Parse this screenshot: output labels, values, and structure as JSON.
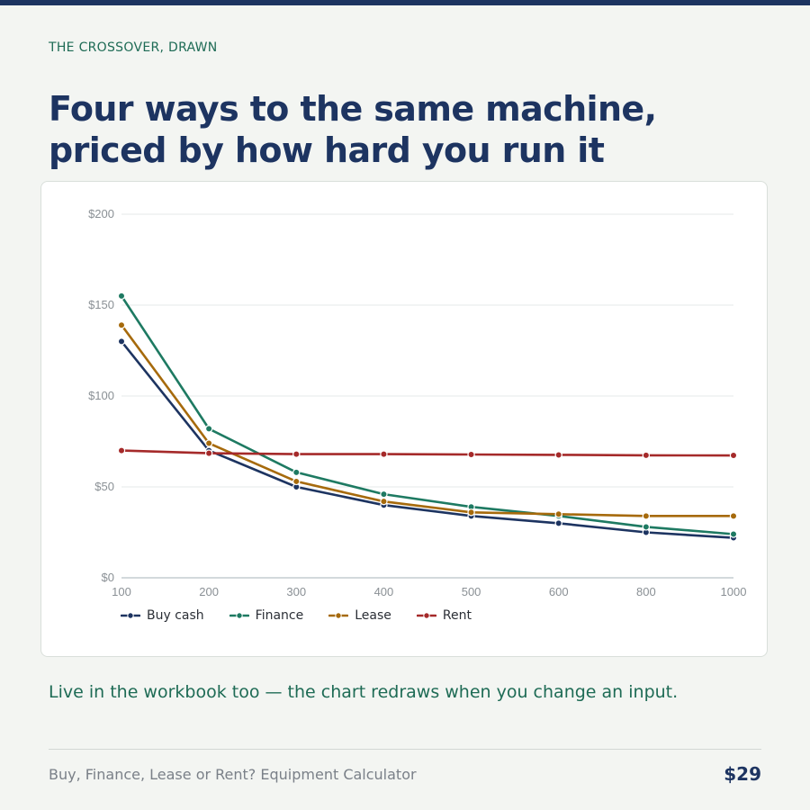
{
  "page": {
    "eyebrow": "THE CROSSOVER, DRAWN",
    "headline": "Four ways to the same machine, priced by how hard you run it",
    "note": "Live in the workbook too — the chart redraws when you change an input.",
    "footer_title": "Buy, Finance, Lease or Rent? Equipment Calculator",
    "price": "$29"
  },
  "colors": {
    "buy_cash": "#1d3461",
    "finance": "#1e7a62",
    "lease": "#a66a0c",
    "rent": "#a52a2a"
  },
  "chart_data": {
    "type": "line",
    "categories": [
      "100",
      "200",
      "300",
      "400",
      "500",
      "600",
      "800",
      "1000"
    ],
    "y_ticks": [
      "$0",
      "$50",
      "$100",
      "$150",
      "$200"
    ],
    "y_tick_values": [
      0,
      50,
      100,
      150,
      200
    ],
    "ylim": [
      0,
      200
    ],
    "grid": true,
    "legend_placement": "bottom-left",
    "series": [
      {
        "name": "Buy cash",
        "color": "#1d3461",
        "values": [
          130,
          70,
          50,
          40,
          34,
          30,
          25,
          22
        ]
      },
      {
        "name": "Finance",
        "color": "#1e7a62",
        "values": [
          155,
          82,
          58,
          46,
          39,
          34,
          28,
          24
        ]
      },
      {
        "name": "Lease",
        "color": "#a66a0c",
        "values": [
          139,
          74,
          53,
          42,
          36,
          35,
          34,
          34
        ]
      },
      {
        "name": "Rent",
        "color": "#a52a2a",
        "values": [
          70,
          68.5,
          68,
          68,
          67.8,
          67.6,
          67.4,
          67.3
        ]
      }
    ]
  }
}
